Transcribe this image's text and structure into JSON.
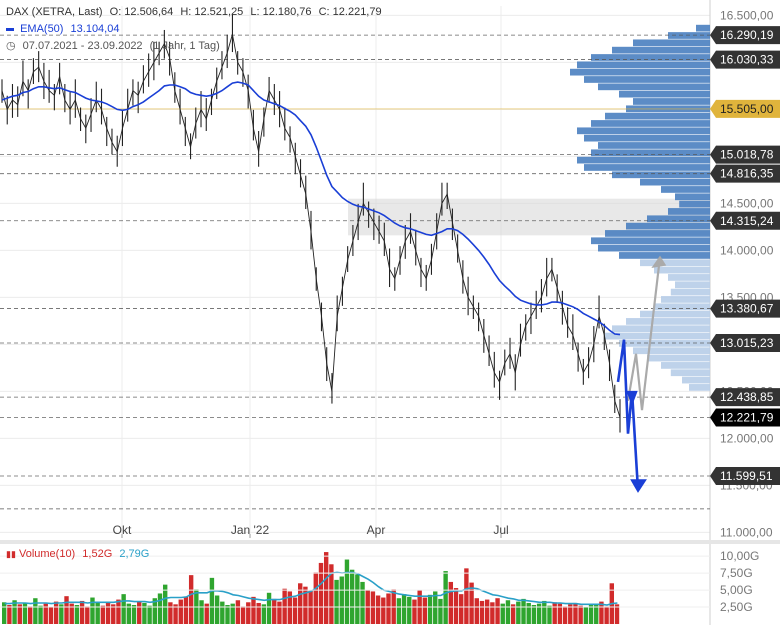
{
  "header": {
    "instrument": "DAX (XETRA, Last)",
    "open": "O: 12.506,64",
    "high": "H: 12.521,25",
    "low": "L: 12.180,76",
    "close": "C: 12.221,79",
    "ema_label": "EMA(50)",
    "ema_value": "13.104,04",
    "range": "07.07.2021 - 23.09.2022",
    "period": "(1 Jahr, 1 Tag)"
  },
  "volume_header": {
    "label": "Volume(10)",
    "v1": "1,52G",
    "v2": "2,79G"
  },
  "colors": {
    "price_line": "#222222",
    "ema": "#1a3fd6",
    "volume_up": "#2fa52f",
    "volume_down": "#d12b2b",
    "volume_avg": "#2aa0c8",
    "profile": "#4a7fc0",
    "profile_light": "#b7cde8",
    "highlight_band": "#d9d9d9",
    "label_bg": "#333333",
    "current_bg": "#000000",
    "gold": "#e0b43c",
    "arrow_blue": "#1a3fd6",
    "arrow_gray": "#aaaaaa"
  },
  "chart_data": {
    "type": "line",
    "x_ticks": [
      "Okt",
      "Jan '22",
      "Apr",
      "Jul"
    ],
    "y_ticks": [
      "16.500,00",
      "16.000,00",
      "15.500,00",
      "15.000,00",
      "14.500,00",
      "14.000,00",
      "13.500,00",
      "13.000,00",
      "12.500,00",
      "12.000,00",
      "11.500,00",
      "11.000,00"
    ],
    "y_tick_values": [
      16500,
      16000,
      15500,
      15000,
      14500,
      14000,
      13500,
      13000,
      12500,
      12000,
      11500,
      11000
    ],
    "ylim": [
      10940,
      16600
    ],
    "levels": [
      {
        "label": "16.290,19",
        "value": 16290
      },
      {
        "label": "16.030,33",
        "value": 16030
      },
      {
        "label": "15.505,00",
        "value": 15505,
        "highlight": true
      },
      {
        "label": "15.018,78",
        "value": 15019
      },
      {
        "label": "14.816,35",
        "value": 14816
      },
      {
        "label": "14.315,24",
        "value": 14315
      },
      {
        "label": "13.380,67",
        "value": 13381
      },
      {
        "label": "13.015,23",
        "value": 13015
      },
      {
        "label": "12.438,85",
        "value": 12439
      },
      {
        "label": "12.221,79",
        "value": 12222,
        "current": true
      },
      {
        "label": "11.599,51",
        "value": 11600
      }
    ],
    "extra_dashed_levels": [
      11250
    ],
    "highlight_band": [
      14160,
      14550
    ],
    "price_series": [
      15700,
      15500,
      15600,
      15550,
      15800,
      15700,
      15900,
      15950,
      15800,
      15700,
      15650,
      15850,
      15600,
      15500,
      15600,
      15400,
      15300,
      15450,
      15600,
      15500,
      15300,
      15150,
      15050,
      15300,
      15500,
      15700,
      15650,
      15800,
      15900,
      16000,
      16100,
      16200,
      16050,
      15700,
      15500,
      15300,
      15100,
      15350,
      15500,
      15400,
      15600,
      15800,
      15950,
      16100,
      16300,
      16000,
      15900,
      15700,
      15300,
      15050,
      15400,
      15700,
      15600,
      15500,
      15300,
      15200,
      15000,
      14800,
      14600,
      14200,
      13700,
      13300,
      12800,
      12500,
      13300,
      13600,
      13900,
      14100,
      14300,
      14500,
      14400,
      14300,
      14200,
      14100,
      13800,
      13700,
      13900,
      14100,
      14200,
      14000,
      13800,
      13700,
      13900,
      14200,
      14500,
      14600,
      14300,
      14000,
      13700,
      13500,
      13400,
      13300,
      13100,
      12900,
      12700,
      12600,
      12800,
      12900,
      12700,
      13000,
      13200,
      13300,
      13400,
      13500,
      13700,
      13800,
      13600,
      13400,
      13200,
      13100,
      12900,
      12700,
      12800,
      13000,
      13300,
      13100,
      12800,
      12400,
      12222
    ],
    "ema_series": [
      15600,
      15620,
      15640,
      15650,
      15680,
      15690,
      15720,
      15740,
      15740,
      15730,
      15720,
      15730,
      15710,
      15690,
      15680,
      15650,
      15620,
      15600,
      15590,
      15580,
      15560,
      15530,
      15500,
      15490,
      15500,
      15530,
      15550,
      15580,
      15620,
      15660,
      15700,
      15750,
      15760,
      15760,
      15740,
      15720,
      15680,
      15660,
      15650,
      15640,
      15650,
      15670,
      15700,
      15740,
      15780,
      15790,
      15780,
      15760,
      15700,
      15640,
      15600,
      15580,
      15560,
      15540,
      15510,
      15480,
      15440,
      15380,
      15320,
      15230,
      15100,
      14950,
      14800,
      14680,
      14620,
      14560,
      14520,
      14490,
      14470,
      14460,
      14440,
      14420,
      14400,
      14370,
      14330,
      14290,
      14260,
      14240,
      14230,
      14210,
      14190,
      14170,
      14160,
      14180,
      14200,
      14230,
      14230,
      14210,
      14170,
      14120,
      14060,
      14000,
      13930,
      13850,
      13760,
      13680,
      13620,
      13570,
      13510,
      13470,
      13450,
      13430,
      13420,
      13420,
      13430,
      13450,
      13450,
      13440,
      13420,
      13400,
      13370,
      13330,
      13300,
      13270,
      13240,
      13200,
      13150,
      13110,
      13104
    ],
    "volume_ticks": [
      "10,00G",
      "7,50G",
      "5,00G",
      "2,50G"
    ],
    "volume_tick_values": [
      10,
      7.5,
      5,
      2.5
    ],
    "volume_max": 11.2,
    "volume_values": [
      3.2,
      2.8,
      3.5,
      2.9,
      3.1,
      2.6,
      3.8,
      2.7,
      3.0,
      2.5,
      3.3,
      2.9,
      4.1,
      3.0,
      2.8,
      3.4,
      2.6,
      3.9,
      3.1,
      2.7,
      3.2,
      2.9,
      3.6,
      4.4,
      3.0,
      2.8,
      3.3,
      3.1,
      2.7,
      3.8,
      4.5,
      5.8,
      3.2,
      2.9,
      3.6,
      4.0,
      7.2,
      5.1,
      3.5,
      3.0,
      6.8,
      4.2,
      3.3,
      2.8,
      3.0,
      3.5,
      2.6,
      3.2,
      4.0,
      3.1,
      2.9,
      4.6,
      3.7,
      3.3,
      5.2,
      4.8,
      3.9,
      6.0,
      5.5,
      4.9,
      7.6,
      9.0,
      10.6,
      8.8,
      6.5,
      7.0,
      9.5,
      8.0,
      7.3,
      6.2,
      5.0,
      4.8,
      4.2,
      3.9,
      4.5,
      5.1,
      3.8,
      4.4,
      4.0,
      3.6,
      5.0,
      3.9,
      4.3,
      4.8,
      3.7,
      7.8,
      6.2,
      5.3,
      4.4,
      8.2,
      6.1,
      3.8,
      3.4,
      3.6,
      3.2,
      3.8,
      3.0,
      3.5,
      2.9,
      3.3,
      3.7,
      3.1,
      2.8,
      3.0,
      3.4,
      2.7,
      3.2,
      3.0,
      2.6,
      2.9,
      3.1,
      2.7,
      2.5,
      3.0,
      2.8,
      3.3,
      2.6,
      6.0,
      2.9
    ],
    "volume_ma": [
      3.0,
      3.0,
      3.1,
      3.1,
      3.1,
      3.0,
      3.1,
      3.1,
      3.1,
      3.0,
      3.1,
      3.1,
      3.2,
      3.2,
      3.2,
      3.2,
      3.1,
      3.2,
      3.2,
      3.2,
      3.2,
      3.2,
      3.3,
      3.4,
      3.4,
      3.3,
      3.3,
      3.3,
      3.2,
      3.3,
      3.5,
      3.8,
      3.9,
      3.9,
      3.9,
      4.0,
      4.4,
      4.6,
      4.6,
      4.6,
      4.9,
      4.9,
      4.8,
      4.6,
      4.3,
      4.2,
      4.0,
      3.8,
      3.7,
      3.6,
      3.5,
      3.6,
      3.6,
      3.6,
      3.8,
      4.0,
      4.1,
      4.4,
      4.6,
      4.8,
      5.3,
      6.0,
      6.8,
      7.5,
      7.6,
      7.5,
      7.6,
      7.6,
      7.4,
      7.0,
      6.6,
      6.1,
      5.5,
      5.0,
      4.8,
      4.6,
      4.4,
      4.3,
      4.2,
      4.1,
      4.1,
      4.1,
      4.1,
      4.2,
      4.2,
      4.6,
      4.8,
      4.9,
      4.9,
      5.2,
      5.3,
      5.2,
      4.9,
      4.6,
      4.3,
      4.2,
      4.0,
      3.8,
      3.7,
      3.5,
      3.5,
      3.4,
      3.3,
      3.2,
      3.2,
      3.2,
      3.1,
      3.1,
      3.0,
      3.0,
      3.0,
      2.9,
      2.9,
      2.9,
      2.9,
      2.9,
      2.8,
      3.0,
      3.1
    ],
    "volume_profile": [
      0.1,
      0.3,
      0.55,
      0.7,
      0.85,
      0.95,
      1.0,
      0.9,
      0.8,
      0.65,
      0.55,
      0.6,
      0.75,
      0.85,
      0.95,
      0.9,
      0.8,
      0.85,
      0.95,
      0.9,
      0.7,
      0.5,
      0.35,
      0.25,
      0.22,
      0.3,
      0.45,
      0.6,
      0.75,
      0.85,
      0.8,
      0.65,
      0.5,
      0.4,
      0.3,
      0.25,
      0.28,
      0.35,
      0.4,
      0.5,
      0.6,
      0.7,
      0.75,
      0.65,
      0.55,
      0.45,
      0.35,
      0.28,
      0.2,
      0.15
    ]
  }
}
